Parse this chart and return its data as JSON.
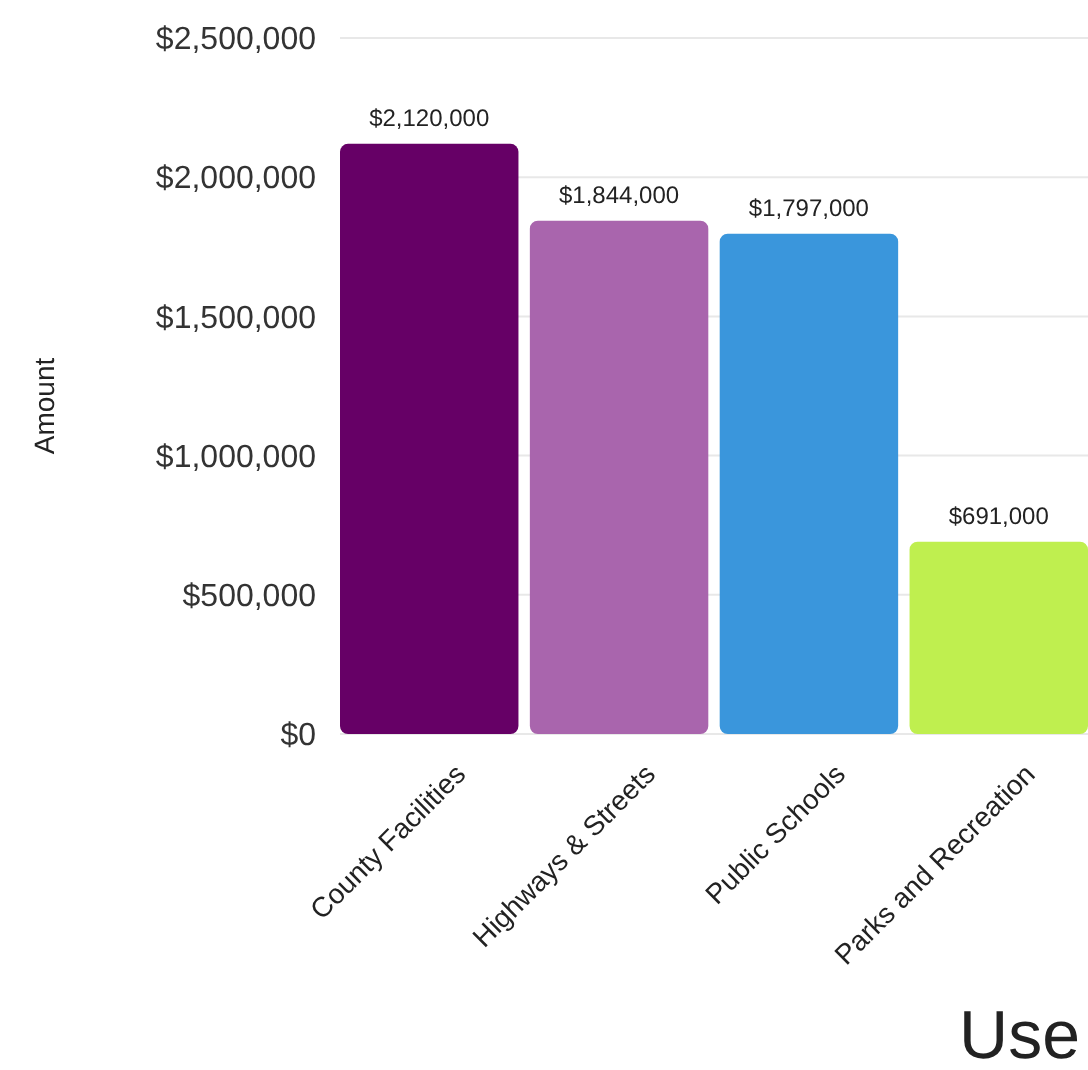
{
  "chart_data": {
    "type": "bar",
    "xlabel": "Use",
    "ylabel": "Amount",
    "categories": [
      "County Facilities",
      "Highways & Streets",
      "Public Schools",
      "Parks and Recreation"
    ],
    "values": [
      2120000,
      1844000,
      1797000,
      691000
    ],
    "colors": [
      "#660066",
      "#a965ad",
      "#3a96dc",
      "#bfef4f"
    ],
    "value_labels": [
      "$2,120,000",
      "$1,844,000",
      "$1,797,000",
      "$691,000"
    ],
    "ylim": [
      0,
      2500000
    ],
    "yticks": [
      {
        "value": 0,
        "label": "$0"
      },
      {
        "value": 500000,
        "label": "$500,000"
      },
      {
        "value": 1000000,
        "label": "$1,000,000"
      },
      {
        "value": 1500000,
        "label": "$1,500,000"
      },
      {
        "value": 2000000,
        "label": "$2,000,000"
      },
      {
        "value": 2500000,
        "label": "$2,500,000"
      }
    ],
    "grid": "y"
  }
}
